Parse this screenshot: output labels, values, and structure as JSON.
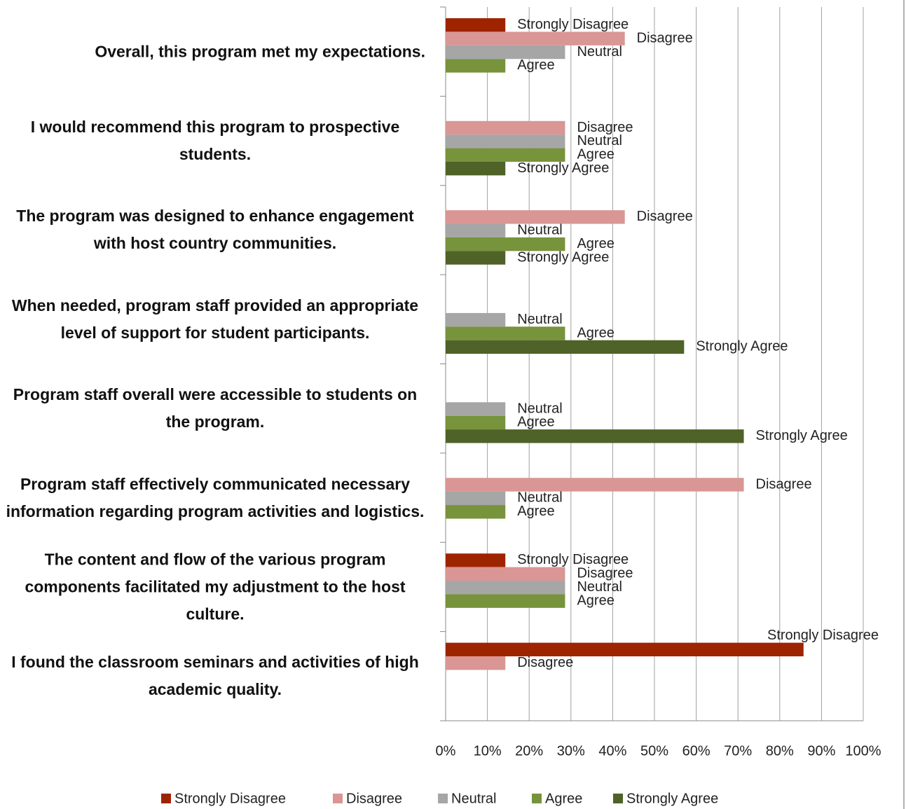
{
  "chart_data": {
    "type": "bar",
    "orientation": "horizontal",
    "categories": [
      "Overall, this program met my expectations.",
      "I would recommend this program to prospective students.",
      "The program was designed to enhance engagement with host country communities.",
      "When needed, program staff provided an appropriate level of support for student participants.",
      "Program staff overall were accessible to students on the program.",
      "Program staff effectively communicated necessary information regarding program activities and logistics.",
      "The content and flow of the various program components facilitated my adjustment to the host culture.",
      "I found the classroom seminars and activities of high academic quality."
    ],
    "series": [
      {
        "name": "Strongly Disagree",
        "color": "#9e2400",
        "values": [
          14.3,
          null,
          null,
          null,
          null,
          null,
          14.3,
          85.7
        ]
      },
      {
        "name": "Disagree",
        "color": "#d99694",
        "values": [
          42.9,
          28.6,
          42.9,
          null,
          null,
          71.4,
          28.6,
          14.3
        ]
      },
      {
        "name": "Neutral",
        "color": "#a6a6a6",
        "values": [
          28.6,
          28.6,
          14.3,
          14.3,
          14.3,
          14.3,
          28.6,
          null
        ]
      },
      {
        "name": "Agree",
        "color": "#77933c",
        "values": [
          14.3,
          28.6,
          28.6,
          28.6,
          14.3,
          14.3,
          28.6,
          null
        ]
      },
      {
        "name": "Strongly Agree",
        "color": "#4f6228",
        "values": [
          null,
          14.3,
          14.3,
          57.1,
          71.4,
          null,
          null,
          null
        ]
      }
    ],
    "xlim": [
      0,
      100
    ],
    "xticks": [
      {
        "value": 0,
        "label": "0%"
      },
      {
        "value": 10,
        "label": "10%"
      },
      {
        "value": 20,
        "label": "20%"
      },
      {
        "value": 30,
        "label": "30%"
      },
      {
        "value": 40,
        "label": "40%"
      },
      {
        "value": 50,
        "label": "50%"
      },
      {
        "value": 60,
        "label": "60%"
      },
      {
        "value": 70,
        "label": "70%"
      },
      {
        "value": 80,
        "label": "80%"
      },
      {
        "value": 90,
        "label": "90%"
      },
      {
        "value": 100,
        "label": "100%"
      }
    ],
    "grid": true,
    "legend": "bottom"
  }
}
